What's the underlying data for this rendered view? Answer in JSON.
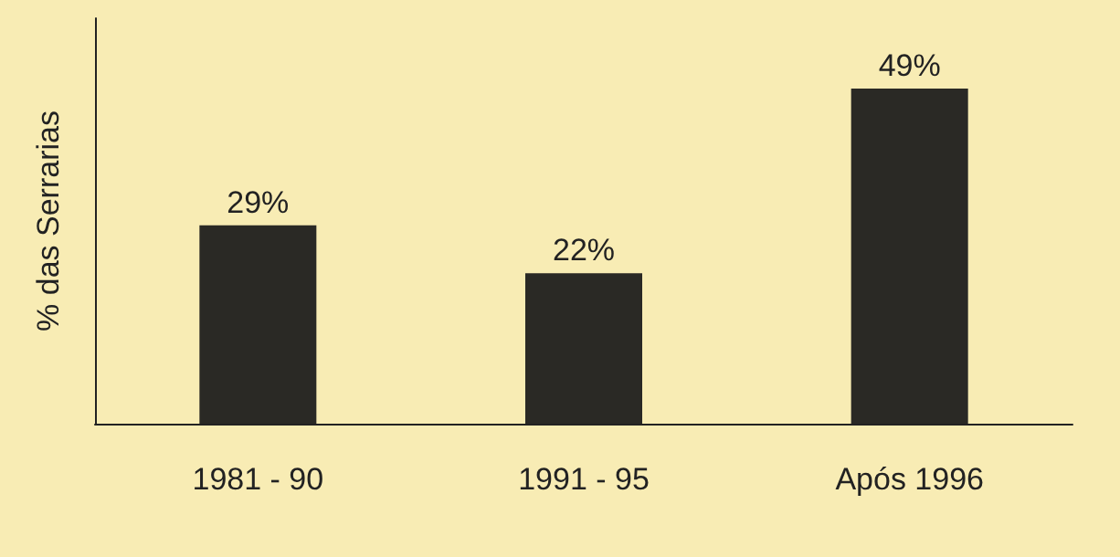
{
  "chart_data": {
    "type": "bar",
    "ylabel": "% das Serrarias",
    "categories": [
      "1981 - 90",
      "1991 - 95",
      "Após 1996"
    ],
    "values": [
      29,
      22,
      49
    ],
    "value_labels": [
      "29%",
      "22%",
      "49%"
    ],
    "color": "#2a2925",
    "tick_labels": "x"
  }
}
